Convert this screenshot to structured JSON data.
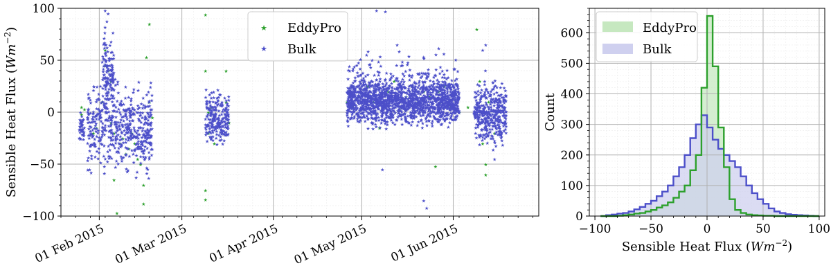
{
  "chart_data": [
    {
      "type": "scatter",
      "ylabel": "Sensible Heat Flux (Wm^{-2})",
      "ylabel_main": "Sensible Heat Flux (",
      "ylabel_unit": "Wm",
      "ylabel_exp": "−2",
      "ylabel_close": ")",
      "xlabel": "",
      "ylim": [
        -100,
        100
      ],
      "xlim": [
        "2015-01-19",
        "2015-06-30"
      ],
      "x_ticks": [
        {
          "date": "2015-02-01",
          "label": "01 Feb 2015"
        },
        {
          "date": "2015-03-01",
          "label": "01 Mar 2015"
        },
        {
          "date": "2015-04-01",
          "label": "01 Apr 2015"
        },
        {
          "date": "2015-05-01",
          "label": "01 May 2015"
        },
        {
          "date": "2015-06-01",
          "label": "01 Jun 2015"
        }
      ],
      "y_ticks": [
        -100,
        -50,
        0,
        50,
        100
      ],
      "y_tick_labels": [
        "−100",
        "−50",
        "0",
        "50",
        "100"
      ],
      "grid": true,
      "legend": "top-center",
      "series": [
        {
          "name": "EddyPro",
          "color": "#2ca02c",
          "marker": "star",
          "points": [
            [
              "2015-01-26",
              5
            ],
            [
              "2015-01-26",
              -2
            ],
            [
              "2015-01-27",
              3
            ],
            [
              "2015-01-30",
              -20
            ],
            [
              "2015-01-31",
              -15
            ],
            [
              "2015-02-02",
              10
            ],
            [
              "2015-02-03",
              45
            ],
            [
              "2015-02-03",
              60
            ],
            [
              "2015-02-04",
              40
            ],
            [
              "2015-02-04",
              20
            ],
            [
              "2015-02-05",
              30
            ],
            [
              "2015-02-05",
              -10
            ],
            [
              "2015-02-06",
              -20
            ],
            [
              "2015-02-06",
              -65
            ],
            [
              "2015-02-07",
              -97
            ],
            [
              "2015-02-08",
              -30
            ],
            [
              "2015-02-09",
              -25
            ],
            [
              "2015-02-10",
              -40
            ],
            [
              "2015-02-11",
              -35
            ],
            [
              "2015-02-12",
              -20
            ],
            [
              "2015-02-13",
              -30
            ],
            [
              "2015-02-14",
              -45
            ],
            [
              "2015-02-15",
              -50
            ],
            [
              "2015-02-16",
              -70
            ],
            [
              "2015-02-16",
              -88
            ],
            [
              "2015-02-17",
              53
            ],
            [
              "2015-02-18",
              85
            ],
            [
              "2015-02-18",
              10
            ],
            [
              "2015-02-19",
              -5
            ],
            [
              "2015-03-09",
              94
            ],
            [
              "2015-03-09",
              40
            ],
            [
              "2015-03-09",
              -75
            ],
            [
              "2015-03-09",
              -84
            ],
            [
              "2015-03-10",
              0
            ],
            [
              "2015-03-10",
              -20
            ],
            [
              "2015-03-11",
              5
            ],
            [
              "2015-03-12",
              -30
            ],
            [
              "2015-03-16",
              40
            ],
            [
              "2015-03-16",
              10
            ],
            [
              "2015-03-17",
              -10
            ],
            [
              "2015-04-26",
              10
            ],
            [
              "2015-04-27",
              20
            ],
            [
              "2015-04-28",
              5
            ],
            [
              "2015-04-30",
              15
            ],
            [
              "2015-05-03",
              25
            ],
            [
              "2015-05-05",
              10
            ],
            [
              "2015-05-07",
              -15
            ],
            [
              "2015-05-10",
              20
            ],
            [
              "2015-05-12",
              30
            ],
            [
              "2015-05-14",
              5
            ],
            [
              "2015-05-16",
              15
            ],
            [
              "2015-05-18",
              25
            ],
            [
              "2015-05-20",
              10
            ],
            [
              "2015-05-22",
              20
            ],
            [
              "2015-05-24",
              15
            ],
            [
              "2015-05-26",
              -52
            ],
            [
              "2015-05-27",
              20
            ],
            [
              "2015-05-28",
              10
            ],
            [
              "2015-05-29",
              25
            ],
            [
              "2015-05-31",
              5
            ],
            [
              "2015-06-03",
              0
            ],
            [
              "2015-06-06",
              5
            ],
            [
              "2015-06-09",
              80
            ],
            [
              "2015-06-10",
              30
            ],
            [
              "2015-06-11",
              -30
            ],
            [
              "2015-06-12",
              -50
            ],
            [
              "2015-06-12",
              -60
            ],
            [
              "2015-06-13",
              10
            ],
            [
              "2015-06-15",
              -20
            ],
            [
              "2015-06-16",
              0
            ],
            [
              "2015-06-18",
              5
            ]
          ]
        },
        {
          "name": "Bulk",
          "color": "#4c4fc9",
          "marker": "star",
          "clusters": [
            {
              "start": "2015-01-25",
              "end": "2015-01-27",
              "mean": -15,
              "spread": 12,
              "n": 40
            },
            {
              "start": "2015-01-28",
              "end": "2015-02-19",
              "mean": -15,
              "spread": 35,
              "n": 520
            },
            {
              "start": "2015-02-02",
              "end": "2015-02-06",
              "mean": 40,
              "spread": 35,
              "n": 120
            },
            {
              "start": "2015-03-09",
              "end": "2015-03-17",
              "mean": -5,
              "spread": 20,
              "n": 220
            },
            {
              "start": "2015-04-26",
              "end": "2015-06-03",
              "mean": 10,
              "spread": 18,
              "n": 1400
            },
            {
              "start": "2015-04-26",
              "end": "2015-06-03",
              "mean": 25,
              "spread": 25,
              "n": 300
            },
            {
              "start": "2015-06-08",
              "end": "2015-06-19",
              "mean": 0,
              "spread": 25,
              "n": 380
            }
          ],
          "outliers": [
            [
              "2015-02-03",
              98
            ],
            [
              "2015-02-04",
              95
            ],
            [
              "2015-05-06",
              98
            ],
            [
              "2015-05-09",
              97
            ],
            [
              "2015-05-13",
              65
            ],
            [
              "2015-05-22",
              -85
            ],
            [
              "2015-05-23",
              -92
            ],
            [
              "2015-05-08",
              -55
            ],
            [
              "2015-06-11",
              60
            ],
            [
              "2015-06-12",
              65
            ],
            [
              "2015-06-15",
              -45
            ]
          ]
        }
      ]
    },
    {
      "type": "histogram",
      "xlabel": "Sensible Heat Flux (Wm^{-2})",
      "xlabel_main": "Sensible Heat Flux (",
      "xlabel_unit": "Wm",
      "xlabel_exp": "−2",
      "xlabel_close": ")",
      "ylabel": "Count",
      "xlim": [
        -105,
        105
      ],
      "ylim": [
        0,
        680
      ],
      "x_ticks": [
        -100,
        -50,
        0,
        50,
        100
      ],
      "x_tick_labels": [
        "−100",
        "−50",
        "0",
        "50",
        "100"
      ],
      "y_ticks": [
        0,
        100,
        200,
        300,
        400,
        500,
        600
      ],
      "grid": true,
      "legend": "top-left",
      "bin_edges": [
        -95,
        -90,
        -85,
        -80,
        -75,
        -70,
        -65,
        -60,
        -55,
        -50,
        -45,
        -40,
        -35,
        -30,
        -25,
        -20,
        -15,
        -10,
        -5,
        0,
        5,
        10,
        15,
        20,
        25,
        30,
        35,
        40,
        45,
        50,
        55,
        60,
        65,
        70,
        75,
        80,
        85,
        90,
        95,
        100
      ],
      "series": [
        {
          "name": "EddyPro",
          "color": "#2ca02c",
          "fill": "#c6e8c0",
          "counts": [
            0,
            0,
            0,
            1,
            3,
            5,
            8,
            10,
            15,
            20,
            28,
            35,
            45,
            60,
            80,
            100,
            150,
            200,
            420,
            655,
            490,
            290,
            160,
            55,
            20,
            10,
            5,
            3,
            2,
            1,
            1,
            0,
            0,
            0,
            0,
            0,
            0,
            0,
            0
          ]
        },
        {
          "name": "Bulk",
          "color": "#4c4fc9",
          "fill": "#cfd0ef",
          "counts": [
            0,
            3,
            5,
            8,
            10,
            15,
            22,
            30,
            40,
            50,
            65,
            80,
            100,
            130,
            160,
            200,
            255,
            300,
            330,
            290,
            250,
            220,
            200,
            180,
            160,
            130,
            100,
            75,
            55,
            40,
            25,
            15,
            10,
            6,
            4,
            3,
            2,
            1,
            0
          ]
        }
      ]
    }
  ]
}
